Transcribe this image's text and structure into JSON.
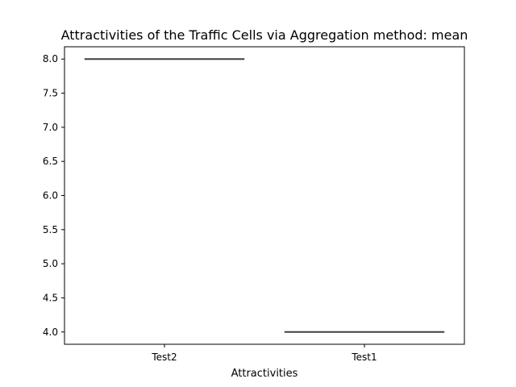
{
  "chart_data": {
    "type": "box",
    "title": "Attractivities of the Traffic Cells via Aggregation method: mean",
    "xlabel": "Attractivities",
    "ylabel": "",
    "categories": [
      "Test2",
      "Test1"
    ],
    "values": [
      8.0,
      4.0
    ],
    "ylim": [
      3.82,
      8.18
    ],
    "yticks": [
      4.0,
      4.5,
      5.0,
      5.5,
      6.0,
      6.5,
      7.0,
      7.5,
      8.0
    ],
    "ytick_labels": [
      "4.0",
      "4.5",
      "5.0",
      "5.5",
      "6.0",
      "6.5",
      "7.0",
      "7.5",
      "8.0"
    ],
    "grid": false,
    "legend": "none",
    "line_color": "#3f3f3f"
  }
}
